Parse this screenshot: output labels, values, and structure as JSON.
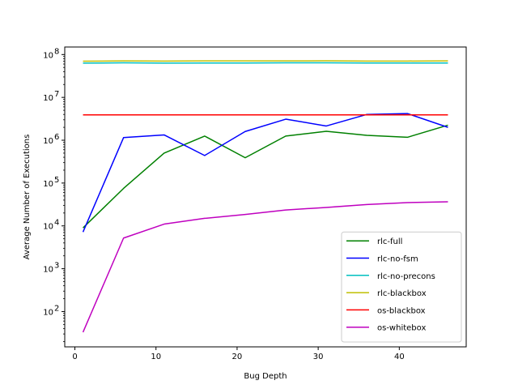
{
  "chart_data": {
    "type": "line",
    "title": "",
    "xlabel": "Bug Depth",
    "ylabel": "Average Number of Executions",
    "xscale": "linear",
    "yscale": "log",
    "xlim": [
      -1.25,
      48.25
    ],
    "ylim": [
      15,
      150000000
    ],
    "xticks": [
      0,
      10,
      20,
      30,
      40
    ],
    "xtick_labels": [
      "0",
      "10",
      "20",
      "30",
      "40"
    ],
    "yticks": [
      100,
      1000,
      10000,
      100000,
      1000000,
      10000000,
      100000000
    ],
    "ytick_labels": [
      {
        "base": "10",
        "exp": "2"
      },
      {
        "base": "10",
        "exp": "3"
      },
      {
        "base": "10",
        "exp": "4"
      },
      {
        "base": "10",
        "exp": "5"
      },
      {
        "base": "10",
        "exp": "6"
      },
      {
        "base": "10",
        "exp": "7"
      },
      {
        "base": "10",
        "exp": "8"
      }
    ],
    "grid": false,
    "legend_position": "lower-right",
    "x": [
      1,
      6,
      11,
      16,
      21,
      26,
      31,
      36,
      41,
      46
    ],
    "series": [
      {
        "name": "rlc-full",
        "color": "#008000",
        "values": [
          9000,
          75000,
          500000,
          1250000,
          390000,
          1250000,
          1620000,
          1300000,
          1170000,
          2250000
        ]
      },
      {
        "name": "rlc-no-fsm",
        "color": "#0000ff",
        "values": [
          7200,
          1150000,
          1330000,
          440000,
          1600000,
          3100000,
          2150000,
          4000000,
          4200000,
          2000000
        ]
      },
      {
        "name": "rlc-no-precons",
        "color": "#00bfbf",
        "values": [
          63000000,
          64000000,
          63000000,
          63500000,
          63500000,
          64000000,
          64000000,
          63500000,
          63500000,
          63500000
        ]
      },
      {
        "name": "rlc-blackbox",
        "color": "#bfbf00",
        "values": [
          70000000,
          71000000,
          70500000,
          71000000,
          71000000,
          71000000,
          71500000,
          70500000,
          70500000,
          71000000
        ]
      },
      {
        "name": "os-blackbox",
        "color": "#ff0000",
        "values": [
          3900000,
          3900000,
          3900000,
          3900000,
          3900000,
          3900000,
          3900000,
          3900000,
          3900000,
          3900000
        ]
      },
      {
        "name": "os-whitebox",
        "color": "#bf00bf",
        "values": [
          33,
          5200,
          11000,
          15000,
          18500,
          23500,
          27000,
          31500,
          35000,
          36500
        ]
      }
    ]
  }
}
